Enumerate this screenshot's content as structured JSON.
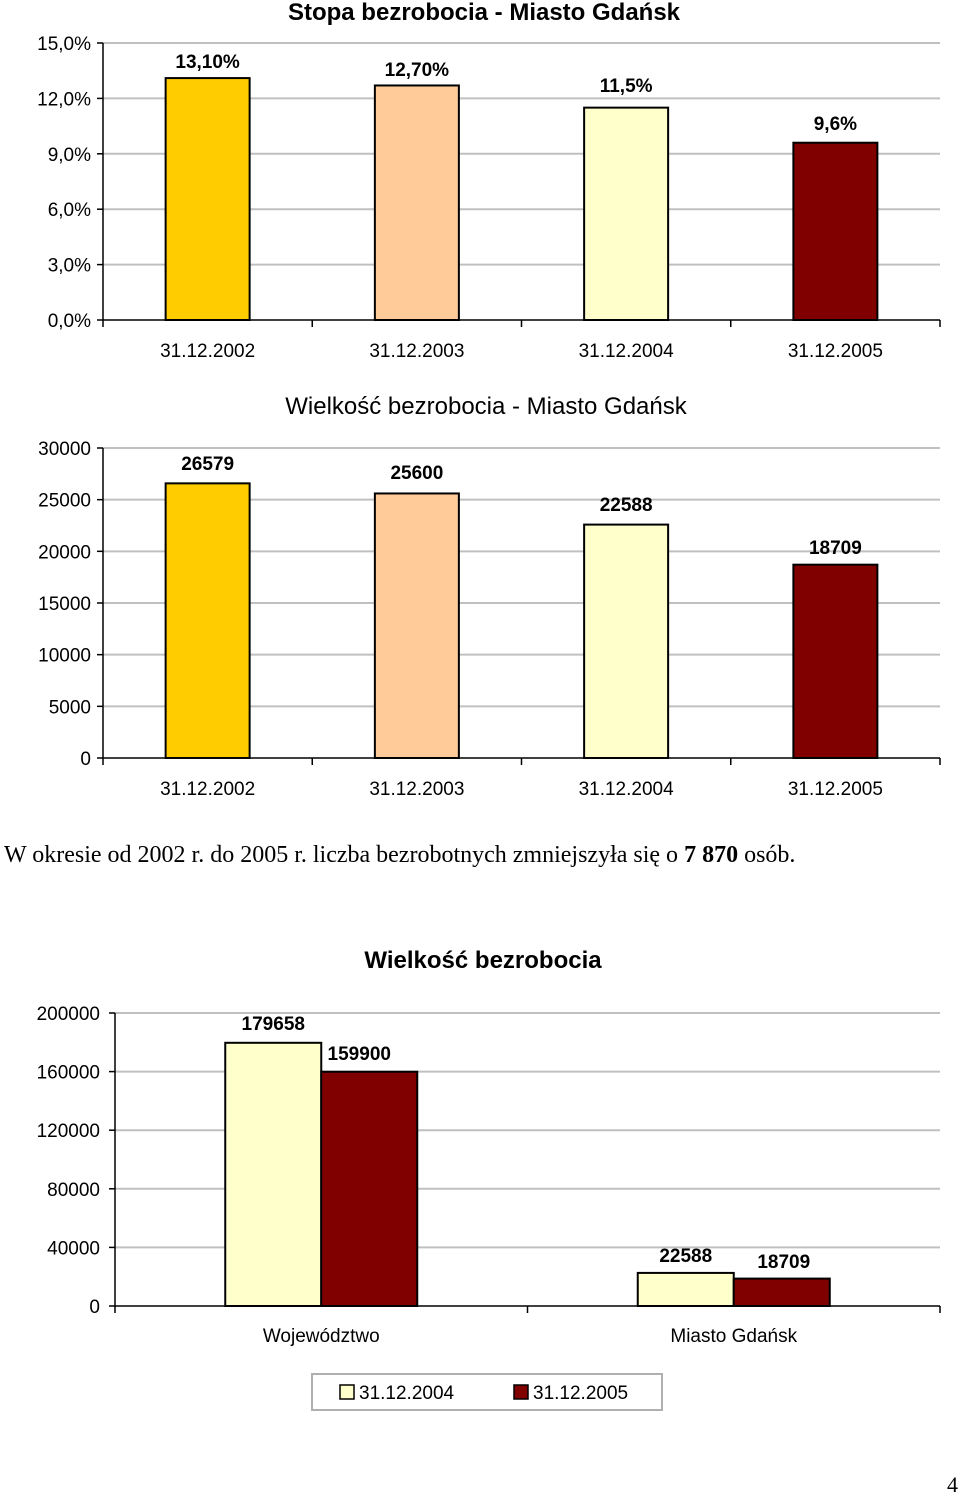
{
  "chart_data": [
    {
      "type": "bar",
      "title": "Stopa bezrobocia - Miasto Gdańsk",
      "categories": [
        "31.12.2002",
        "31.12.2003",
        "31.12.2004",
        "31.12.2005"
      ],
      "values": [
        13.1,
        12.7,
        11.5,
        9.6
      ],
      "data_labels": [
        "13,10%",
        "12,70%",
        "11,5%",
        "9,6%"
      ],
      "bar_colors": [
        "#FFCC00",
        "#FFCC99",
        "#FFFFCC",
        "#800000"
      ],
      "ylim": [
        0,
        15
      ],
      "yticks": [
        0,
        3,
        6,
        9,
        12,
        15
      ],
      "ytick_labels": [
        "0,0%",
        "3,0%",
        "6,0%",
        "9,0%",
        "12,0%",
        "15,0%"
      ],
      "grid": true,
      "xlabel": "",
      "ylabel": ""
    },
    {
      "type": "bar",
      "title": "Wielkość bezrobocia - Miasto Gdańsk",
      "categories": [
        "31.12.2002",
        "31.12.2003",
        "31.12.2004",
        "31.12.2005"
      ],
      "values": [
        26579,
        25600,
        22588,
        18709
      ],
      "data_labels": [
        "26579",
        "25600",
        "22588",
        "18709"
      ],
      "bar_colors": [
        "#FFCC00",
        "#FFCC99",
        "#FFFFCC",
        "#800000"
      ],
      "ylim": [
        0,
        30000
      ],
      "yticks": [
        0,
        5000,
        10000,
        15000,
        20000,
        25000,
        30000
      ],
      "ytick_labels": [
        "0",
        "5000",
        "10000",
        "15000",
        "20000",
        "25000",
        "30000"
      ],
      "grid": true,
      "xlabel": "",
      "ylabel": ""
    },
    {
      "type": "bar",
      "title": "Wielkość bezrobocia",
      "categories": [
        "Województwo",
        "Miasto Gdańsk"
      ],
      "series": [
        {
          "name": "31.12.2004",
          "values": [
            179658,
            22588
          ],
          "color": "#FFFFCC"
        },
        {
          "name": "31.12.2005",
          "values": [
            159900,
            18709
          ],
          "color": "#800000"
        }
      ],
      "data_labels": [
        [
          "179658",
          "22588"
        ],
        [
          "159900",
          "18709"
        ]
      ],
      "ylim": [
        0,
        200000
      ],
      "yticks": [
        0,
        40000,
        80000,
        120000,
        160000,
        200000
      ],
      "ytick_labels": [
        "0",
        "40000",
        "80000",
        "120000",
        "160000",
        "200000"
      ],
      "grid": true,
      "legend": "bottom",
      "xlabel": "",
      "ylabel": ""
    }
  ],
  "summary": {
    "text_before": "W okresie od 2002 r. do 2005 r. liczba bezrobotnych zmniejszyła się o ",
    "bold_value": "7 870",
    "text_after": " osób."
  },
  "page_number": "4"
}
